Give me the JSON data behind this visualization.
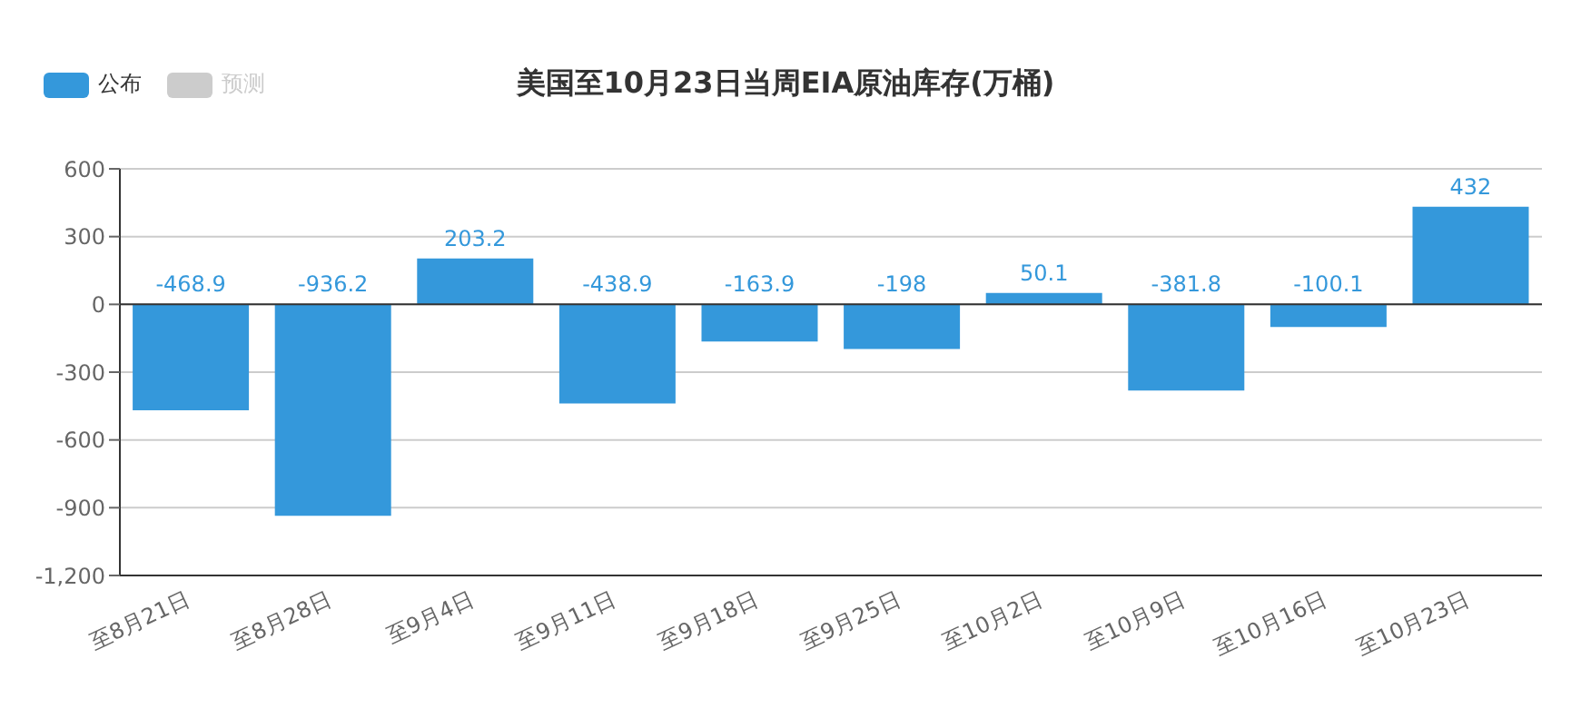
{
  "chart_data": {
    "type": "bar",
    "title": "美国至10月23日当周EIA原油库存(万桶)",
    "categories": [
      "至8月21日",
      "至8月28日",
      "至9月4日",
      "至9月11日",
      "至9月18日",
      "至9月25日",
      "至10月2日",
      "至10月9日",
      "至10月16日",
      "至10月23日"
    ],
    "series": [
      {
        "name": "公布",
        "color": "#3498db",
        "values": [
          -468.9,
          -936.2,
          203.2,
          -438.9,
          -163.9,
          -198,
          50.1,
          -381.8,
          -100.1,
          432
        ]
      },
      {
        "name": "预测",
        "color": "#cccccc",
        "values": [
          null,
          null,
          null,
          null,
          null,
          null,
          null,
          null,
          null,
          null
        ]
      }
    ],
    "ylim": [
      -1200,
      600
    ],
    "yticks": [
      {
        "value": -1200,
        "label": "-1,200"
      },
      -900,
      -600,
      -300,
      0,
      300,
      600
    ],
    "grid": "y",
    "legend": "top left",
    "data_labels": true
  }
}
